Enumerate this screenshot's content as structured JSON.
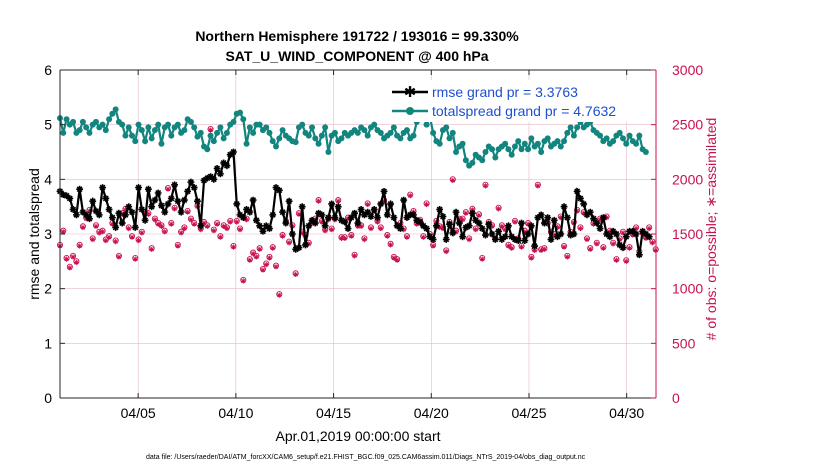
{
  "chart_data": {
    "type": "line",
    "title": "Northern Hemisphere 191722 / 193016 = 99.330%",
    "subtitle": "SAT_U_WIND_COMPONENT @ 400 hPa",
    "xlabel": "Apr.01,2019 00:00:00 start",
    "ylabel": "rmse and totalspread",
    "y2label": "# of obs: o=possible; ∗=assimilated",
    "footnote": "data file: /Users/raeder/DAI/ATM_forcXX/CAM6_setup/f.e21.FHIST_BGC.f09_025.CAM6assim.011/Diags_NTrS_2019-04/obs_diag_output.nc",
    "xlim": [
      1.0,
      31.5
    ],
    "ylim": [
      0,
      6
    ],
    "y2lim": [
      0,
      3000
    ],
    "xticks": [
      5,
      10,
      15,
      20,
      25,
      30
    ],
    "xtick_labels": [
      "04/05",
      "04/10",
      "04/15",
      "04/20",
      "04/25",
      "04/30"
    ],
    "yticks": [
      0,
      1,
      2,
      3,
      4,
      5,
      6
    ],
    "y2ticks": [
      0,
      500,
      1000,
      1500,
      2000,
      2500,
      3000
    ],
    "legend_placement": "top-right",
    "colors": {
      "rmse": "#000000",
      "spread": "#12857f",
      "obs": "#c8124f",
      "legend_text": "#1f4fd1",
      "grid": "#e6b8c8"
    },
    "series": [
      {
        "name": "rmse grand pr = 3.3763",
        "axis": "left",
        "values": [
          3.78,
          3.72,
          3.7,
          3.65,
          3.45,
          3.35,
          3.82,
          3.4,
          3.35,
          3.28,
          3.6,
          3.42,
          3.35,
          3.85,
          3.65,
          3.45,
          3.3,
          3.12,
          3.38,
          3.2,
          3.35,
          3.5,
          3.4,
          3.12,
          3.85,
          3.45,
          3.25,
          3.82,
          3.5,
          3.62,
          3.75,
          3.52,
          3.4,
          3.55,
          3.65,
          3.9,
          3.6,
          3.4,
          3.62,
          3.78,
          3.95,
          3.85,
          3.6,
          3.15,
          3.98,
          4.02,
          4.05,
          4.0,
          4.2,
          4.1,
          4.3,
          4.25,
          4.45,
          4.5,
          3.55,
          3.35,
          3.3,
          3.45,
          3.4,
          3.62,
          3.25,
          3.15,
          3.05,
          3.15,
          3.1,
          3.35,
          3.85,
          3.8,
          3.4,
          3.2,
          3.6,
          3.0,
          2.72,
          2.75,
          3.5,
          2.8,
          3.15,
          3.25,
          3.2,
          3.38,
          3.35,
          3.15,
          3.3,
          3.55,
          3.3,
          3.5,
          3.25,
          3.22,
          3.1,
          3.3,
          3.38,
          3.2,
          3.45,
          3.35,
          3.4,
          3.32,
          3.45,
          3.3,
          3.55,
          3.78,
          3.35,
          3.55,
          3.3,
          3.15,
          3.1,
          3.62,
          3.3,
          3.35,
          3.35,
          3.25,
          3.22,
          3.15,
          3.1,
          2.95,
          2.9,
          3.15,
          3.45,
          3.32,
          2.9,
          3.18,
          3.02,
          3.4,
          3.2,
          2.95,
          3.12,
          3.15,
          3.38,
          3.25,
          3.2,
          3.1,
          2.98,
          3.18,
          3.0,
          2.9,
          3.05,
          2.9,
          2.95,
          3.15,
          2.95,
          2.9,
          2.88,
          3.2,
          2.88,
          3.0,
          3.15,
          2.78,
          3.3,
          3.35,
          3.2,
          3.3,
          2.9,
          3.25,
          2.95,
          3.0,
          3.5,
          3.3,
          2.98,
          3.0,
          3.78,
          3.65,
          3.55,
          3.35,
          3.4,
          3.28,
          3.2,
          3.1,
          3.3,
          3.0,
          2.95,
          3.05,
          3.0,
          2.8,
          2.75,
          2.95,
          3.05,
          3.05,
          3.0,
          2.62,
          3.05,
          3.0,
          2.95
        ]
      },
      {
        "name": "totalspread grand pr = 4.7632",
        "axis": "left",
        "values": [
          5.12,
          4.85,
          5.1,
          5.0,
          5.05,
          4.85,
          4.9,
          5.05,
          4.95,
          4.85,
          5.0,
          5.05,
          4.95,
          5.0,
          4.9,
          5.1,
          5.2,
          5.28,
          5.05,
          5.0,
          4.8,
          4.95,
          4.8,
          4.7,
          5.0,
          4.9,
          4.7,
          4.95,
          4.75,
          4.9,
          5.0,
          4.65,
          4.95,
          5.0,
          4.8,
          4.95,
          5.0,
          4.85,
          4.9,
          5.1,
          5.05,
          4.95,
          4.78,
          4.85,
          4.6,
          4.55,
          4.8,
          4.7,
          4.85,
          4.95,
          4.75,
          4.85,
          5.0,
          5.05,
          5.2,
          5.22,
          5.1,
          4.65,
          4.95,
          4.85,
          5.0,
          5.0,
          4.9,
          4.95,
          4.85,
          4.7,
          4.6,
          4.75,
          4.9,
          4.8,
          4.75,
          4.7,
          4.68,
          4.95,
          5.0,
          4.85,
          4.8,
          4.95,
          4.75,
          4.65,
          4.8,
          4.95,
          4.5,
          4.8,
          4.85,
          4.7,
          4.75,
          4.85,
          4.8,
          4.85,
          4.9,
          4.85,
          4.95,
          4.9,
          4.8,
          4.95,
          5.0,
          4.9,
          4.85,
          4.75,
          4.8,
          4.85,
          4.95,
          4.8,
          4.75,
          4.85,
          4.9,
          4.75,
          4.8,
          5.05,
          5.1,
          5.15,
          5.0,
          5.15,
          4.85,
          4.7,
          4.65,
          4.9,
          4.95,
          4.75,
          4.85,
          4.5,
          4.6,
          4.65,
          4.35,
          4.25,
          4.3,
          4.45,
          4.4,
          4.35,
          4.5,
          4.6,
          4.55,
          4.4,
          4.55,
          4.6,
          4.65,
          4.55,
          4.45,
          4.6,
          4.7,
          4.55,
          4.65,
          4.55,
          4.75,
          4.6,
          4.65,
          4.5,
          4.7,
          4.75,
          4.6,
          4.65,
          4.7,
          4.6,
          4.7,
          4.85,
          4.95,
          4.8,
          4.95,
          5.05,
          4.95,
          5.0,
          5.05,
          4.9,
          4.85,
          4.8,
          4.7,
          4.75,
          4.65,
          4.7,
          4.8,
          4.85,
          4.75,
          4.65,
          4.8,
          4.7,
          4.65,
          4.8,
          4.55,
          4.5
        ]
      },
      {
        "name": "obs possible (o)",
        "axis": "right",
        "values": [
          1400,
          1530,
          1280,
          1200,
          1300,
          1250,
          1400,
          1570,
          1650,
          1720,
          1460,
          1580,
          1520,
          1530,
          1450,
          1480,
          1600,
          1440,
          1300,
          1690,
          1730,
          1560,
          1480,
          1280,
          1450,
          1520,
          1700,
          1690,
          1370,
          1640,
          1600,
          1580,
          1530,
          1920,
          1600,
          1740,
          1400,
          1520,
          1560,
          1710,
          1640,
          1600,
          1760,
          1550,
          1610,
          1580,
          2460,
          1540,
          1600,
          1480,
          1580,
          1560,
          1620,
          1390,
          1620,
          1550,
          1080,
          1640,
          1270,
          1330,
          1300,
          1370,
          1180,
          1230,
          1290,
          1380,
          1210,
          950,
          1490,
          1620,
          1430,
          1580,
          1140,
          1690,
          1520,
          1490,
          1420,
          1610,
          1640,
          1810,
          1620,
          1540,
          1640,
          1550,
          1640,
          1810,
          1470,
          1470,
          1650,
          1490,
          1310,
          1580,
          1580,
          1460,
          1780,
          1560,
          1720,
          1620,
          1560,
          1810,
          1490,
          1410,
          1290,
          1270,
          1600,
          1550,
          1480,
          1860,
          1710,
          1600,
          1630,
          1480,
          1780,
          1500,
          1400,
          1620,
          1570,
          1560,
          1350,
          1610,
          2000,
          1530,
          1640,
          1640,
          1700,
          1460,
          1730,
          1550,
          1680,
          1280,
          1950,
          1610,
          1580,
          1460,
          1740,
          1580,
          1550,
          1400,
          1380,
          1620,
          1460,
          1390,
          1530,
          1600,
          1290,
          1360,
          1950,
          1360,
          1370,
          1600,
          1520,
          1500,
          1570,
          1660,
          1390,
          1300,
          1520,
          1610,
          1720,
          1560,
          1700,
          1460,
          1370,
          1600,
          1420,
          1640,
          1380,
          1660,
          1530,
          1420,
          1270,
          1460,
          1520,
          1260,
          1380,
          1500,
          1560,
          1340,
          1510,
          1470,
          1560,
          1430,
          1360
        ]
      },
      {
        "name": "obs assimilated (∗)",
        "axis": "right",
        "values": [
          1390,
          1520,
          1270,
          1190,
          1290,
          1240,
          1390,
          1560,
          1640,
          1710,
          1450,
          1570,
          1510,
          1520,
          1440,
          1470,
          1590,
          1430,
          1290,
          1680,
          1720,
          1550,
          1470,
          1270,
          1440,
          1510,
          1690,
          1680,
          1360,
          1630,
          1590,
          1570,
          1520,
          1910,
          1590,
          1730,
          1390,
          1510,
          1550,
          1700,
          1630,
          1590,
          1750,
          1540,
          1600,
          1570,
          2450,
          1530,
          1590,
          1470,
          1570,
          1550,
          1610,
          1380,
          1610,
          1540,
          1070,
          1630,
          1260,
          1320,
          1290,
          1360,
          1170,
          1220,
          1280,
          1370,
          1200,
          940,
          1480,
          1610,
          1420,
          1570,
          1130,
          1680,
          1510,
          1480,
          1410,
          1600,
          1630,
          1800,
          1610,
          1530,
          1630,
          1540,
          1630,
          1800,
          1460,
          1460,
          1640,
          1480,
          1300,
          1570,
          1570,
          1450,
          1770,
          1550,
          1710,
          1610,
          1550,
          1800,
          1480,
          1400,
          1280,
          1260,
          1590,
          1540,
          1470,
          1850,
          1700,
          1590,
          1620,
          1470,
          1770,
          1490,
          1390,
          1610,
          1560,
          1550,
          1340,
          1600,
          1990,
          1520,
          1630,
          1630,
          1690,
          1450,
          1720,
          1540,
          1670,
          1270,
          1940,
          1600,
          1570,
          1450,
          1730,
          1570,
          1540,
          1390,
          1370,
          1610,
          1450,
          1380,
          1520,
          1590,
          1280,
          1350,
          1940,
          1350,
          1360,
          1590,
          1510,
          1490,
          1560,
          1650,
          1380,
          1290,
          1510,
          1600,
          1710,
          1550,
          1690,
          1450,
          1360,
          1590,
          1410,
          1630,
          1370,
          1650,
          1520,
          1410,
          1260,
          1450,
          1510,
          1250,
          1370,
          1490,
          1550,
          1330,
          1500,
          1460,
          1550,
          1420,
          1350
        ]
      }
    ]
  }
}
